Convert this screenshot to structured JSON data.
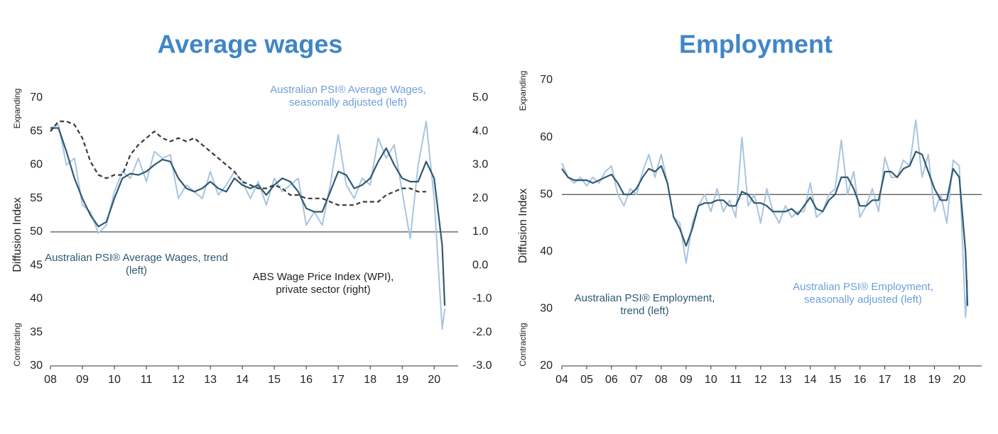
{
  "chart_data": [
    {
      "type": "line",
      "title": "Average wages",
      "ylabel": "Diffusion Index",
      "ylabel_top": "Expanding",
      "ylabel_bottom": "Contracting",
      "hline": 50,
      "x": [
        8,
        8.25,
        8.5,
        8.75,
        9,
        9.25,
        9.5,
        9.75,
        10,
        10.25,
        10.5,
        10.75,
        11,
        11.25,
        11.5,
        11.75,
        12,
        12.25,
        12.5,
        12.75,
        13,
        13.25,
        13.5,
        13.75,
        14,
        14.25,
        14.5,
        14.75,
        15,
        15.25,
        15.5,
        15.75,
        16,
        16.25,
        16.5,
        16.75,
        17,
        17.25,
        17.5,
        17.75,
        18,
        18.25,
        18.5,
        18.75,
        19,
        19.25,
        19.5,
        19.75,
        20,
        20.25,
        20.33
      ],
      "xlim": [
        8,
        20.75
      ],
      "xticks": [
        {
          "value": 8,
          "label": "08"
        },
        {
          "value": 9,
          "label": "09"
        },
        {
          "value": 10,
          "label": "10"
        },
        {
          "value": 11,
          "label": "11"
        },
        {
          "value": 12,
          "label": "12"
        },
        {
          "value": 13,
          "label": "13"
        },
        {
          "value": 14,
          "label": "14"
        },
        {
          "value": 15,
          "label": "15"
        },
        {
          "value": 16,
          "label": "16"
        },
        {
          "value": 17,
          "label": "17"
        },
        {
          "value": 18,
          "label": "18"
        },
        {
          "value": 19,
          "label": "19"
        },
        {
          "value": 20,
          "label": "20"
        }
      ],
      "ylim": [
        30,
        70
      ],
      "yticks": [
        30,
        35,
        40,
        45,
        50,
        55,
        60,
        65,
        70
      ],
      "y2lim": [
        -3,
        5
      ],
      "y2ticks": [
        {
          "value": -3,
          "label": "-3.0"
        },
        {
          "value": -2,
          "label": "-2.0"
        },
        {
          "value": -1,
          "label": "-1.0"
        },
        {
          "value": 0,
          "label": "0.0"
        },
        {
          "value": 1,
          "label": "1.0"
        },
        {
          "value": 2,
          "label": "2.0"
        },
        {
          "value": 3,
          "label": "3.0"
        },
        {
          "value": 4,
          "label": "4.0"
        },
        {
          "value": 5,
          "label": "5.0"
        }
      ],
      "series": [
        {
          "name": "Australian PSI® Average Wages, seasonally adjusted (left)",
          "color": "#a9c4e0",
          "label_color": "#6f9fd8",
          "values": [
            65.5,
            66,
            60,
            61,
            54,
            53,
            49.8,
            51,
            56,
            59,
            58,
            61,
            57.5,
            62,
            61,
            61.5,
            55,
            57,
            56,
            55,
            59,
            55.5,
            57,
            59,
            57.5,
            55,
            57.5,
            54,
            58,
            56,
            57,
            58,
            51,
            53,
            51,
            57,
            64.5,
            57,
            55,
            58,
            57,
            64,
            61,
            63,
            56,
            49,
            60,
            66.5,
            55,
            35.5,
            38.5
          ]
        },
        {
          "name": "Australian PSI® Average Wages, trend (left)",
          "color": "#2e5a72",
          "label_color": "#2e5a72",
          "values": [
            65.5,
            65.5,
            62,
            58,
            55,
            52.5,
            50.8,
            51.5,
            55,
            58,
            58.7,
            58.5,
            59,
            60,
            60.8,
            60.5,
            58,
            56.5,
            56,
            56.5,
            57.5,
            56.5,
            56,
            58,
            57,
            56.5,
            57,
            55.5,
            57,
            58,
            57.5,
            56,
            53.5,
            53,
            53,
            56,
            59,
            58.5,
            56.5,
            57,
            58,
            60.5,
            62.5,
            60,
            58,
            57.5,
            57.5,
            60.5,
            58,
            48,
            39
          ]
        },
        {
          "name": "ABS Wage Price Index (WPI), private sector (right)",
          "color": "#3a3a3a",
          "label_color": "#222222",
          "dashed": true,
          "axis": "y2",
          "values": [
            4.0,
            4.3,
            4.3,
            4.2,
            3.8,
            3.1,
            2.7,
            2.6,
            2.7,
            2.7,
            3.3,
            3.6,
            3.8,
            4.0,
            3.8,
            3.7,
            3.8,
            3.7,
            3.8,
            3.6,
            3.4,
            3.2,
            3.0,
            2.8,
            2.5,
            2.4,
            2.3,
            2.3,
            2.4,
            2.3,
            2.1,
            2.1,
            2.0,
            2.0,
            2.0,
            1.9,
            1.8,
            1.8,
            1.8,
            1.9,
            1.9,
            1.9,
            2.1,
            2.2,
            2.3,
            2.3,
            2.2,
            2.2,
            null,
            null,
            null
          ]
        }
      ]
    },
    {
      "type": "line",
      "title": "Employment",
      "ylabel": "Diffusion Index",
      "ylabel_top": "Expanding",
      "ylabel_bottom": "Contracting",
      "hline": 50,
      "x": [
        4,
        4.25,
        4.5,
        4.75,
        5,
        5.25,
        5.5,
        5.75,
        6,
        6.25,
        6.5,
        6.75,
        7,
        7.25,
        7.5,
        7.75,
        8,
        8.25,
        8.5,
        8.75,
        9,
        9.25,
        9.5,
        9.75,
        10,
        10.25,
        10.5,
        10.75,
        11,
        11.25,
        11.5,
        11.75,
        12,
        12.25,
        12.5,
        12.75,
        13,
        13.25,
        13.5,
        13.75,
        14,
        14.25,
        14.5,
        14.75,
        15,
        15.25,
        15.5,
        15.75,
        16,
        16.25,
        16.5,
        16.75,
        17,
        17.25,
        17.5,
        17.75,
        18,
        18.25,
        18.5,
        18.75,
        19,
        19.25,
        19.5,
        19.75,
        20,
        20.25,
        20.33
      ],
      "xlim": [
        4,
        20.9
      ],
      "xticks": [
        {
          "value": 4,
          "label": "04"
        },
        {
          "value": 5,
          "label": "05"
        },
        {
          "value": 6,
          "label": "06"
        },
        {
          "value": 7,
          "label": "07"
        },
        {
          "value": 8,
          "label": "08"
        },
        {
          "value": 9,
          "label": "09"
        },
        {
          "value": 10,
          "label": "10"
        },
        {
          "value": 11,
          "label": "11"
        },
        {
          "value": 12,
          "label": "12"
        },
        {
          "value": 13,
          "label": "13"
        },
        {
          "value": 14,
          "label": "14"
        },
        {
          "value": 15,
          "label": "15"
        },
        {
          "value": 16,
          "label": "16"
        },
        {
          "value": 17,
          "label": "17"
        },
        {
          "value": 18,
          "label": "18"
        },
        {
          "value": 19,
          "label": "19"
        },
        {
          "value": 20,
          "label": "20"
        }
      ],
      "ylim": [
        20,
        70
      ],
      "yticks": [
        20,
        30,
        40,
        50,
        60,
        70
      ],
      "series": [
        {
          "name": "Australian PSI® Employment, seasonally adjusted (left)",
          "color": "#a9c4e0",
          "label_color": "#6f9fd8",
          "values": [
            55.5,
            53,
            52,
            53,
            51.5,
            53,
            52,
            54,
            55,
            50,
            48,
            51,
            50,
            54,
            57,
            53,
            57,
            52,
            46,
            45,
            38,
            45,
            48,
            50,
            47,
            51,
            47,
            49,
            46,
            60,
            48,
            50,
            45,
            51,
            47,
            45,
            48,
            46,
            47,
            47,
            52,
            46,
            47,
            50,
            51,
            59.5,
            50,
            54,
            46,
            48,
            51,
            47,
            56.5,
            53,
            53,
            56,
            55,
            63,
            53,
            57,
            47,
            50,
            45,
            56,
            55,
            28.5,
            35
          ]
        },
        {
          "name": "Australian PSI® Employment, trend (left)",
          "color": "#2e5a72",
          "label_color": "#2e5a72",
          "values": [
            54.5,
            53,
            52.5,
            52.5,
            52.5,
            52,
            52.5,
            53,
            53.5,
            52,
            50,
            50,
            51,
            53,
            54.5,
            54,
            55,
            52,
            46,
            44,
            41,
            44,
            48,
            48.5,
            48.5,
            49,
            49,
            48,
            48,
            50.5,
            50,
            48.5,
            48.5,
            48,
            47,
            47,
            47,
            47.5,
            46.5,
            48,
            49.5,
            47.5,
            47,
            49,
            50,
            53,
            53,
            51,
            48,
            48,
            49,
            49,
            54,
            54,
            53,
            54.5,
            55,
            57.5,
            57,
            54,
            51,
            49,
            49,
            54.5,
            53,
            40,
            30.5
          ]
        }
      ]
    }
  ]
}
